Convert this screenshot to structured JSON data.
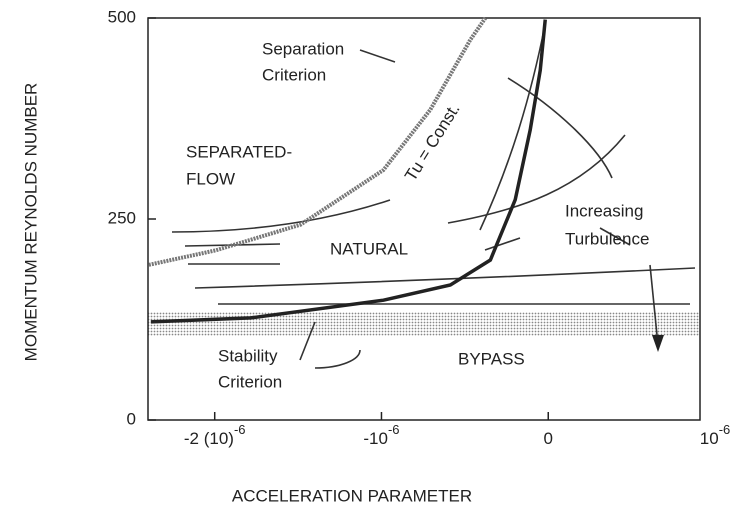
{
  "chart_data": {
    "type": "line",
    "x_label": "ACCELERATION PARAMETER",
    "y_label": "MOMENTUM REYNOLDS NUMBER",
    "xlim": [
      -2.4e-06,
      9.1e-07
    ],
    "ylim": [
      0,
      500
    ],
    "xticks": [
      {
        "value": -2e-06,
        "label": "-2 (10)",
        "exponent": "-6"
      },
      {
        "value": -1e-06,
        "label": "-10",
        "exponent": "-6"
      },
      0,
      {
        "value": 1e-06,
        "label": "10",
        "exponent": "-6"
      }
    ],
    "yticks": [
      0,
      250,
      500
    ],
    "series": [
      {
        "name": "Separation Criterion",
        "color": "#777777",
        "x": [
          -2.395e-06,
          -1.994e-06,
          -1.485e-06,
          -9.88e-07,
          -7.07e-07,
          -4.67e-07,
          -3.77e-07
        ],
        "values": [
          193,
          211,
          243,
          311,
          386,
          473,
          500
        ]
      },
      {
        "name": "Stability Criterion",
        "color": "#222222",
        "x": [
          -2.383e-06,
          -1.784e-06,
          -9.88e-07,
          -5.87e-07,
          -3.47e-07,
          -1.98e-07,
          -1.08e-07,
          -4.8e-08,
          -1.8e-08
        ],
        "values": [
          122,
          127,
          149,
          168,
          199,
          274,
          361,
          435,
          498
        ]
      }
    ],
    "annotations": [
      "Separation",
      "Criterion",
      "SEPARATED-",
      "FLOW",
      "Tu = Const.",
      "NATURAL",
      "Increasing",
      "Turbulence",
      "BYPASS",
      "Stability",
      "Criterion"
    ]
  }
}
